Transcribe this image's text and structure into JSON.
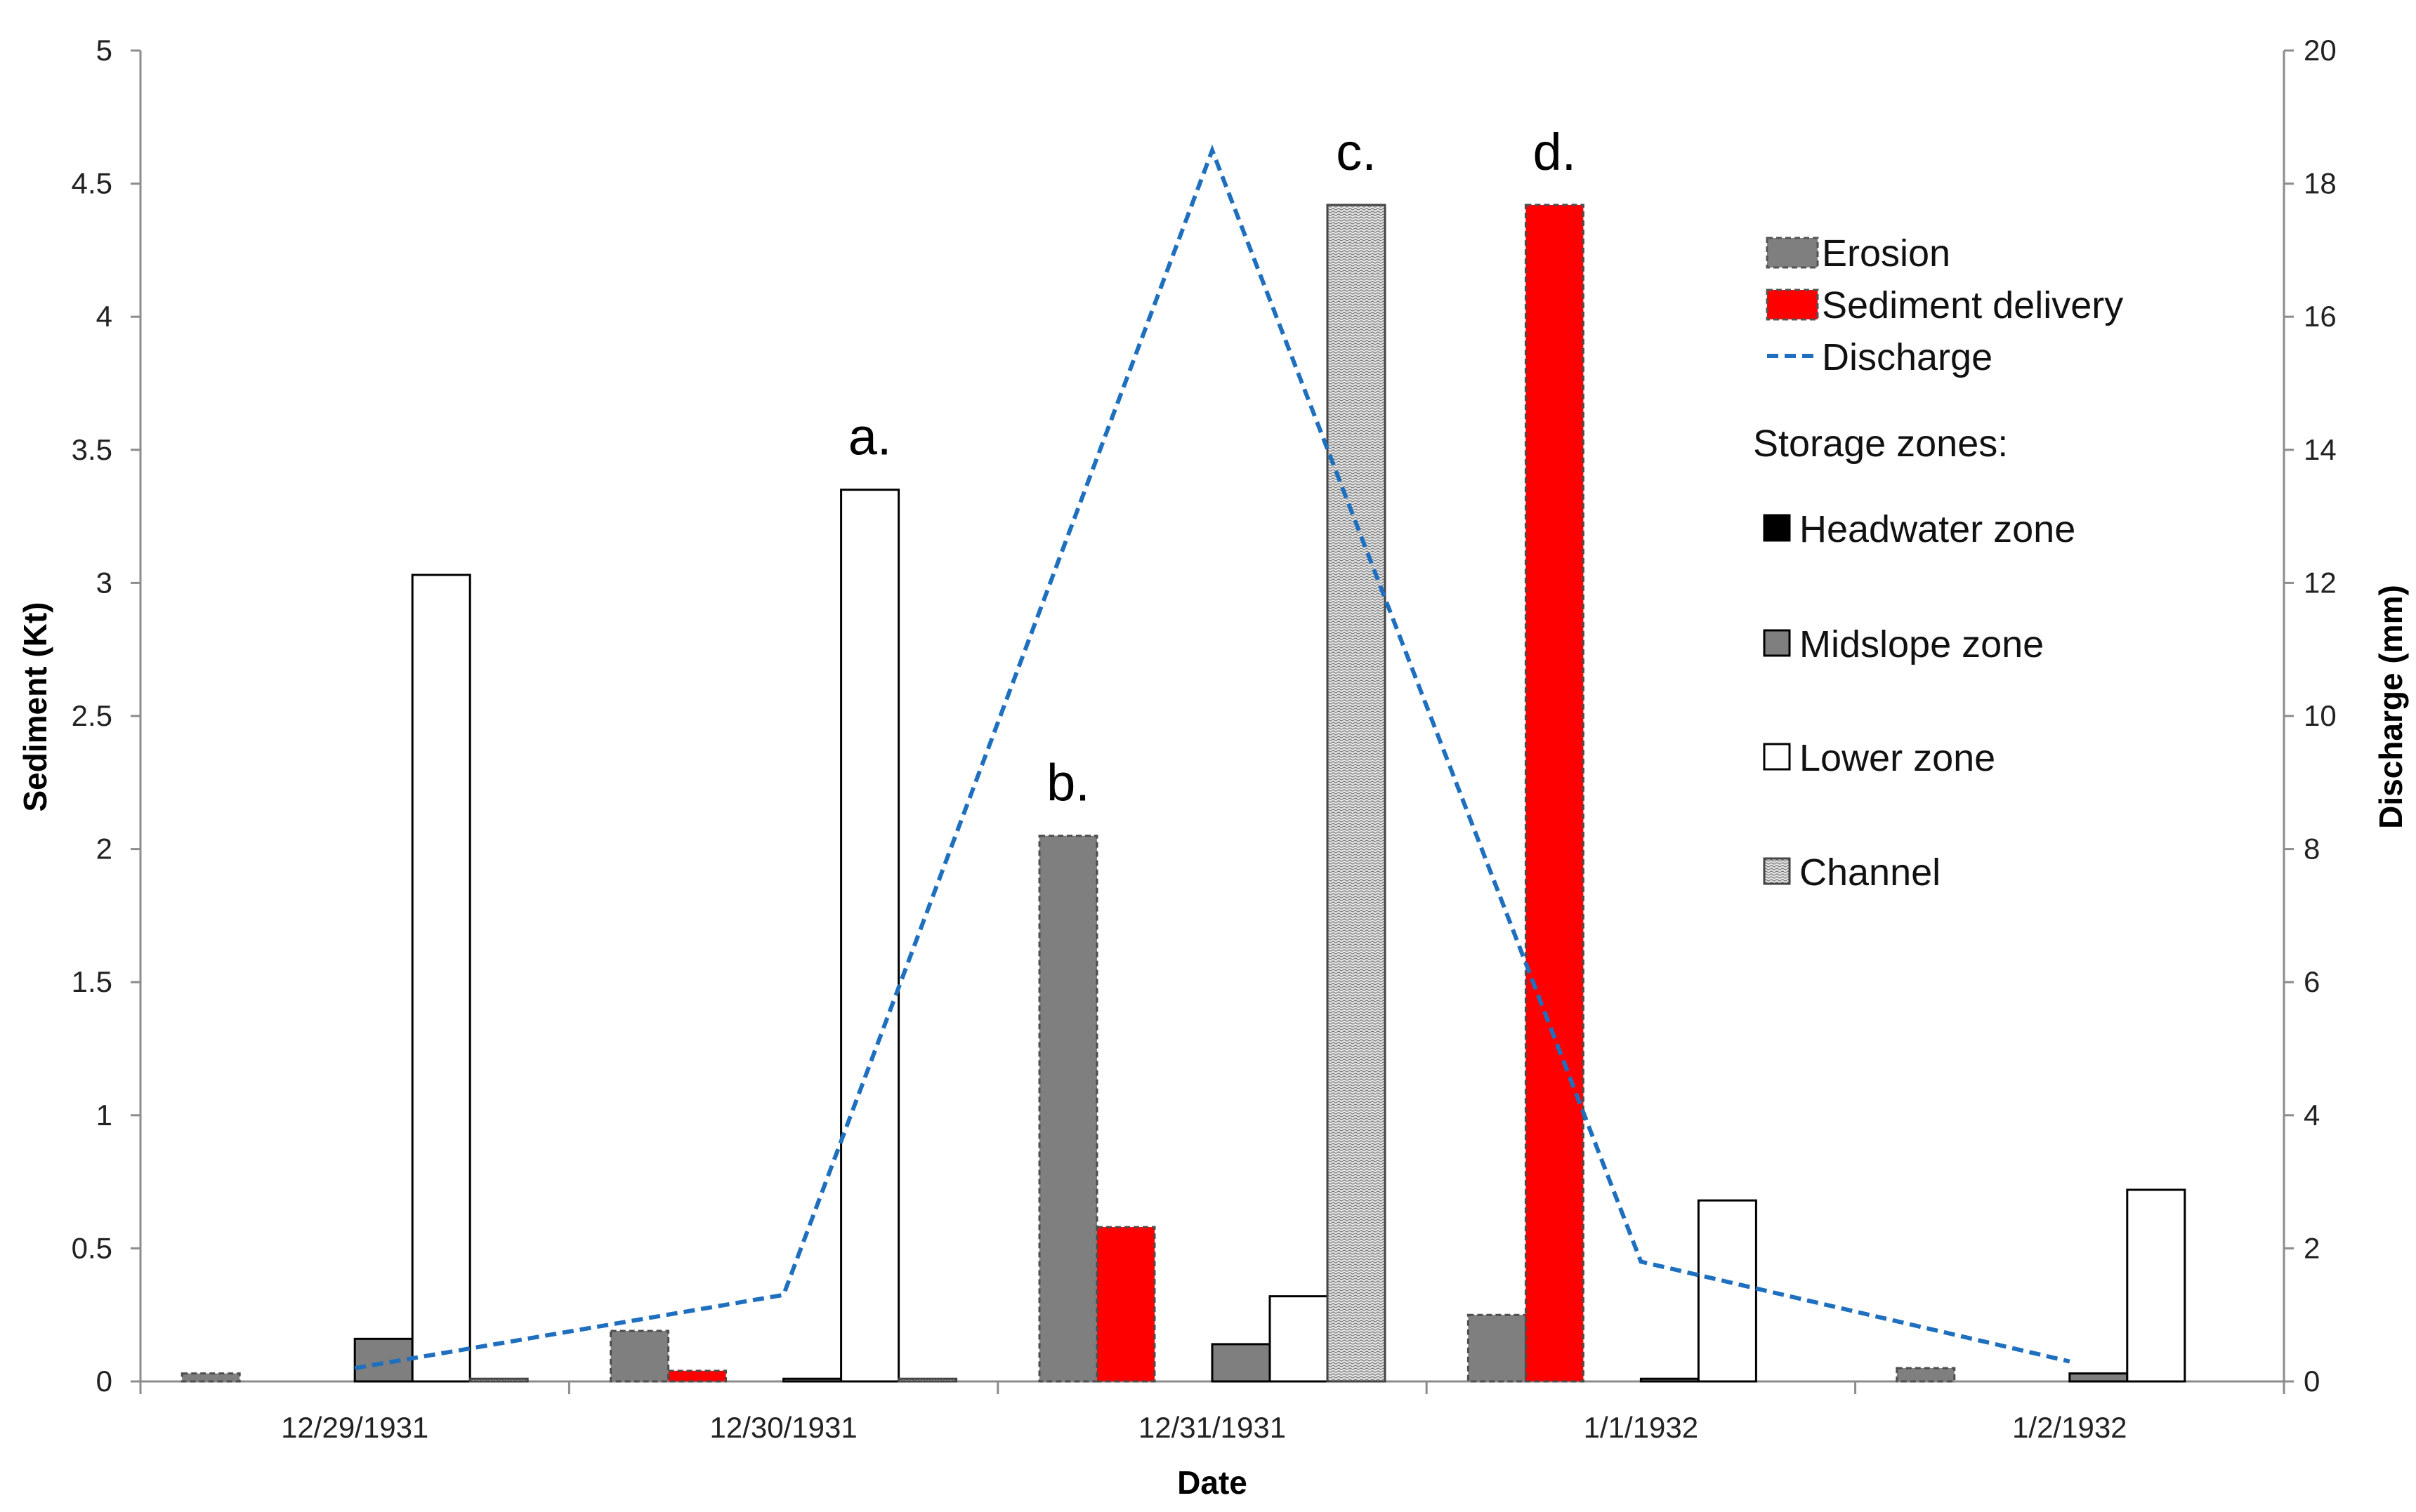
{
  "chart_data": {
    "type": "bar",
    "categories": [
      "12/29/1931",
      "12/30/1931",
      "12/31/1931",
      "1/1/1932",
      "1/2/1932"
    ],
    "xlabel": "Date",
    "ylabel": "Sediment (Kt)",
    "y2label": "Discharge (mm)",
    "ylim": [
      0,
      5
    ],
    "y2lim": [
      0,
      20
    ],
    "yticks": [
      "0",
      "0.5",
      "1",
      "1.5",
      "2",
      "2.5",
      "3",
      "3.5",
      "4",
      "4.5",
      "5"
    ],
    "y2ticks": [
      "0",
      "2",
      "4",
      "6",
      "8",
      "10",
      "12",
      "14",
      "16",
      "18",
      "20"
    ],
    "series": [
      {
        "name": "Erosion",
        "style": "erosion",
        "values": [
          0.03,
          0.19,
          2.05,
          0.25,
          0.05
        ]
      },
      {
        "name": "Sediment delivery",
        "style": "delivery",
        "values": [
          0.0,
          0.04,
          0.58,
          4.42,
          0.0
        ]
      },
      {
        "name": "Headwater zone",
        "style": "headwater",
        "values": [
          0.0,
          0.0,
          0.0,
          0.0,
          0.0
        ]
      },
      {
        "name": "Midslope zone",
        "style": "midslope",
        "values": [
          0.16,
          0.01,
          0.14,
          0.01,
          0.03
        ]
      },
      {
        "name": "Lower zone",
        "style": "lower",
        "values": [
          3.03,
          3.35,
          0.32,
          0.68,
          0.72
        ]
      },
      {
        "name": "Channel",
        "style": "channel",
        "values": [
          0.01,
          0.01,
          4.42,
          0.0,
          0.0
        ]
      }
    ],
    "line": {
      "name": "Discharge",
      "axis": "right",
      "color": "#1f6fbf",
      "values": [
        0.2,
        1.3,
        18.5,
        1.8,
        0.3
      ]
    },
    "annotations": [
      {
        "text": "a.",
        "category": 1,
        "series": "Lower zone"
      },
      {
        "text": "b.",
        "category": 2,
        "series": "Erosion"
      },
      {
        "text": "c.",
        "category": 2,
        "series": "Channel"
      },
      {
        "text": "d.",
        "category": 3,
        "series": "Sediment delivery"
      }
    ],
    "legend": {
      "position": "right",
      "items": [
        "Erosion",
        "Sediment delivery",
        "Discharge"
      ],
      "storage_title": "Storage zones:",
      "storage_items": [
        "Headwater zone",
        "Midslope zone",
        "Lower zone",
        "Channel"
      ]
    },
    "colors": {
      "erosion": "#7f7f7f",
      "delivery": "#ff0000",
      "headwater": "#000000",
      "midslope": "#7f7f7f",
      "lower": "#ffffff",
      "channel": "#d9d9d9",
      "discharge": "#1f6fbf"
    }
  }
}
